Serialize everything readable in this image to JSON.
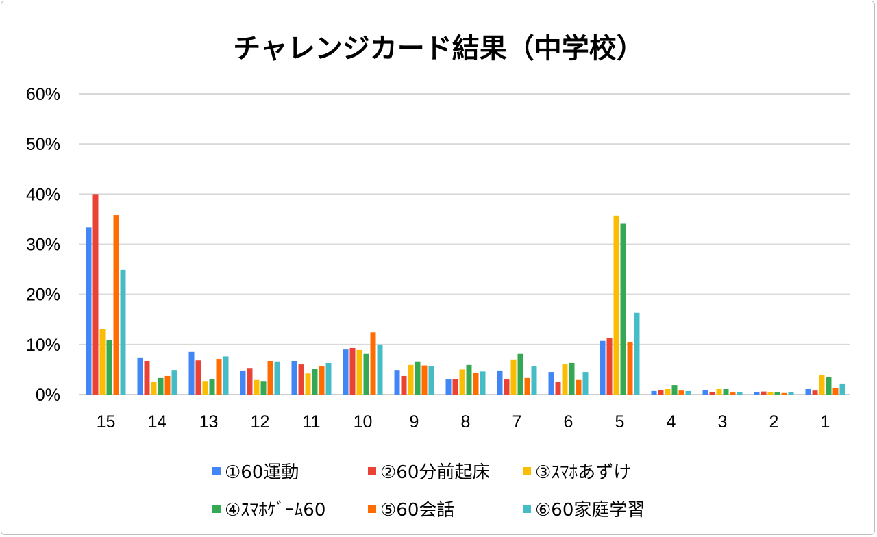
{
  "chart_data": {
    "type": "bar",
    "title": "チャレンジカード結果（中学校）",
    "xlabel": "",
    "ylabel": "",
    "ylim": [
      0,
      60
    ],
    "yticks": [
      "0%",
      "10%",
      "20%",
      "30%",
      "40%",
      "50%",
      "60%"
    ],
    "grid": true,
    "legend": "bottom",
    "categories": [
      "15",
      "14",
      "13",
      "12",
      "11",
      "10",
      "9",
      "8",
      "7",
      "6",
      "5",
      "4",
      "3",
      "2",
      "1"
    ],
    "series": [
      {
        "name": "①60運動",
        "color": "#4285f4",
        "values": [
          33.3,
          7.4,
          8.5,
          4.8,
          6.7,
          9.0,
          4.9,
          3.0,
          4.8,
          4.5,
          10.7,
          0.7,
          0.9,
          0.5,
          1.1
        ]
      },
      {
        "name": "②60分前起床",
        "color": "#ea4335",
        "values": [
          40.0,
          6.7,
          6.8,
          5.3,
          6.0,
          9.3,
          3.7,
          3.1,
          3.0,
          2.6,
          11.3,
          0.9,
          0.5,
          0.6,
          0.8
        ]
      },
      {
        "name": "③ｽﾏﾎあずけ",
        "color": "#fbbc04",
        "values": [
          13.1,
          2.6,
          2.7,
          2.9,
          4.2,
          8.9,
          5.9,
          5.0,
          7.0,
          6.0,
          35.7,
          1.1,
          1.1,
          0.5,
          3.9
        ]
      },
      {
        "name": "④ｽﾏﾎｹﾞｰﾑ60",
        "color": "#34a853",
        "values": [
          10.8,
          3.3,
          3.0,
          2.7,
          5.1,
          8.1,
          6.6,
          5.9,
          8.1,
          6.3,
          34.1,
          1.9,
          1.1,
          0.5,
          3.5
        ]
      },
      {
        "name": "⑤60会話",
        "color": "#ff6d01",
        "values": [
          35.8,
          3.7,
          7.1,
          6.7,
          5.6,
          12.4,
          5.8,
          4.3,
          3.3,
          2.9,
          10.5,
          0.8,
          0.4,
          0.3,
          1.3
        ]
      },
      {
        "name": "⑥60家庭学習",
        "color": "#46bdc6",
        "values": [
          24.9,
          4.9,
          7.6,
          6.6,
          6.3,
          10.0,
          5.6,
          4.6,
          5.6,
          4.5,
          16.3,
          0.7,
          0.5,
          0.5,
          2.2
        ]
      }
    ]
  }
}
